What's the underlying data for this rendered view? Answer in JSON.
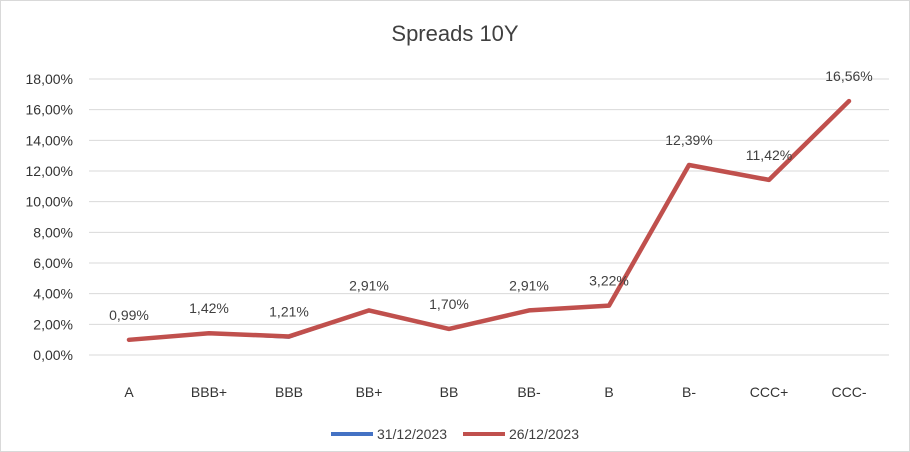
{
  "chart_data": {
    "type": "line",
    "title": "Spreads 10Y",
    "categories": [
      "A",
      "BBB+",
      "BBB",
      "BB+",
      "BB",
      "BB-",
      "B",
      "B-",
      "CCC+",
      "CCC-"
    ],
    "series": [
      {
        "name": "31/12/2023",
        "color": "#4472c4",
        "values": [
          0.99,
          1.42,
          1.15,
          2.91,
          1.7,
          2.91,
          3.22,
          12.39,
          11.42,
          16.56
        ]
      },
      {
        "name": "26/12/2023",
        "color": "#c0504d",
        "values": [
          0.99,
          1.42,
          1.21,
          2.91,
          1.7,
          2.91,
          3.22,
          12.39,
          11.42,
          16.56
        ],
        "data_labels": [
          "0,99%",
          "1,42%",
          "1,21%",
          "2,91%",
          "1,70%",
          "2,91%",
          "3,22%",
          "12,39%",
          "11,42%",
          "16,56%"
        ]
      }
    ],
    "ylim": [
      0,
      18
    ],
    "ytick_labels": [
      "0,00%",
      "2,00%",
      "4,00%",
      "6,00%",
      "8,00%",
      "10,00%",
      "12,00%",
      "14,00%",
      "16,00%",
      "18,00%"
    ],
    "grid": true,
    "legend_position": "bottom"
  }
}
